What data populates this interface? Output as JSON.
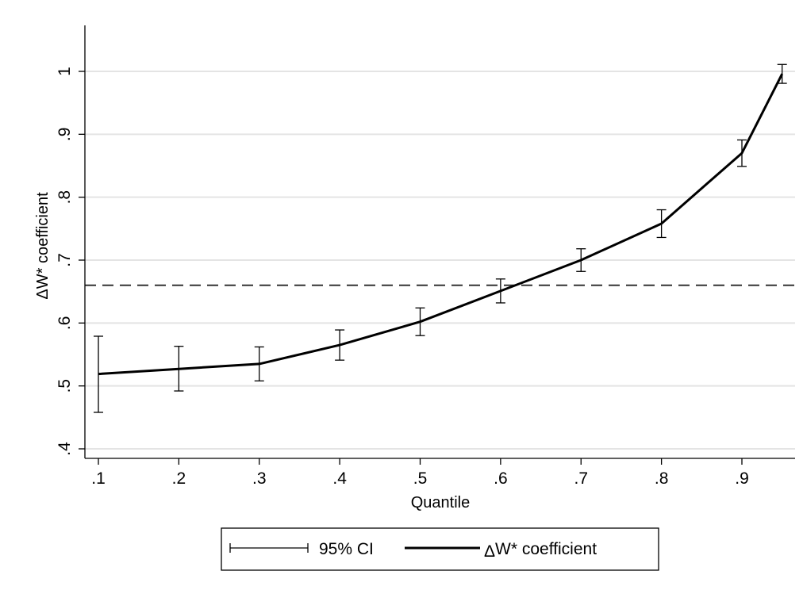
{
  "chart_data": {
    "type": "line",
    "xlabel": "Quantile",
    "ylabel_symbol": "Δ",
    "ylabel_text": "W* coefficient",
    "x_ticks": [
      ".1",
      ".2",
      ".3",
      ".4",
      ".5",
      ".6",
      ".7",
      ".8",
      ".9"
    ],
    "x_tick_values": [
      0.1,
      0.2,
      0.3,
      0.4,
      0.5,
      0.6,
      0.7,
      0.8,
      0.9
    ],
    "y_ticks": [
      ".4",
      ".5",
      ".6",
      ".7",
      ".8",
      ".9",
      "1"
    ],
    "y_tick_values": [
      0.4,
      0.5,
      0.6,
      0.7,
      0.8,
      0.9,
      1.0
    ],
    "xlim": [
      0.1,
      0.95
    ],
    "ylim": [
      0.39,
      1.07
    ],
    "grid": true,
    "reference_line": {
      "y": 0.66,
      "style": "dashed"
    },
    "series": [
      {
        "name": "ΔW* coefficient",
        "x": [
          0.1,
          0.2,
          0.3,
          0.4,
          0.5,
          0.6,
          0.7,
          0.8,
          0.9,
          0.95
        ],
        "y": [
          0.519,
          0.527,
          0.535,
          0.565,
          0.602,
          0.651,
          0.7,
          0.758,
          0.87,
          0.996
        ]
      }
    ],
    "ci": {
      "name": "95% CI",
      "lower": [
        0.458,
        0.492,
        0.508,
        0.541,
        0.58,
        0.632,
        0.682,
        0.736,
        0.849,
        0.981
      ],
      "upper": [
        0.579,
        0.563,
        0.562,
        0.589,
        0.624,
        0.67,
        0.718,
        0.78,
        0.891,
        1.011
      ]
    },
    "legend": {
      "position": "bottom",
      "items": [
        {
          "label": "95% CI"
        },
        {
          "prefix": "Δ",
          "label": "W* coefficient"
        }
      ]
    },
    "colors": {
      "line": "#000000",
      "grid": "#e4e4e4",
      "reference": "#333333"
    }
  }
}
